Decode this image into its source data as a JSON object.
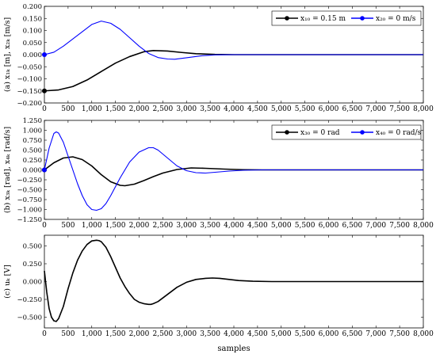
{
  "chart_data": [
    {
      "type": "line",
      "ylabel": "(a) x₁ₖ [m], x₂ₖ [m/s]",
      "xlabel": "",
      "xlim": [
        0,
        8000
      ],
      "ylim": [
        -0.2,
        0.2
      ],
      "xticks": [
        0,
        500,
        1000,
        1500,
        2000,
        2500,
        3000,
        3500,
        4000,
        4500,
        5000,
        5500,
        6000,
        6500,
        7000,
        7500,
        8000
      ],
      "xtick_labels": [
        "0",
        "500",
        "1,000",
        "1,500",
        "2,000",
        "2,500",
        "3,000",
        "3,500",
        "4,000",
        "4,500",
        "5,000",
        "5,500",
        "6,000",
        "6,500",
        "7,000",
        "7,500",
        "8,000"
      ],
      "yticks": [
        -0.2,
        -0.15,
        -0.1,
        -0.05,
        0,
        0.05,
        0.1,
        0.15,
        0.2
      ],
      "ytick_labels": [
        "−0.200",
        "−0.150",
        "−0.100",
        "−0.050",
        "0.000",
        "0.050",
        "0.100",
        "0.150",
        "0.200"
      ],
      "legend_position": "top-right",
      "series": [
        {
          "name": "x₁₀ = 0.15 m",
          "color": "#000000",
          "marker_start": true,
          "x": [
            0,
            300,
            600,
            900,
            1200,
            1500,
            1800,
            2100,
            2300,
            2600,
            2900,
            3200,
            3600,
            4000,
            4500,
            5000,
            8000
          ],
          "y": [
            -0.15,
            -0.146,
            -0.132,
            -0.105,
            -0.07,
            -0.035,
            -0.008,
            0.012,
            0.017,
            0.015,
            0.009,
            0.004,
            0.001,
            0.0,
            0.0,
            0.0,
            0.0
          ]
        },
        {
          "name": "x₂₀ = 0 m/s",
          "color": "#0000ff",
          "marker_start": true,
          "x": [
            0,
            200,
            400,
            600,
            800,
            1000,
            1200,
            1400,
            1600,
            1800,
            2000,
            2200,
            2400,
            2600,
            2750,
            3000,
            3300,
            3600,
            4000,
            4500,
            8000
          ],
          "y": [
            0.0,
            0.01,
            0.035,
            0.065,
            0.095,
            0.125,
            0.139,
            0.13,
            0.105,
            0.07,
            0.035,
            0.005,
            -0.012,
            -0.018,
            -0.019,
            -0.013,
            -0.005,
            -0.001,
            0.0,
            0.0,
            0.0
          ]
        }
      ]
    },
    {
      "type": "line",
      "ylabel": "(b) x₃ₖ [rad], x₄ₖ [rad/s]",
      "xlabel": "",
      "xlim": [
        0,
        8000
      ],
      "ylim": [
        -1.25,
        1.25
      ],
      "xticks": [
        0,
        500,
        1000,
        1500,
        2000,
        2500,
        3000,
        3500,
        4000,
        4500,
        5000,
        5500,
        6000,
        6500,
        7000,
        7500,
        8000
      ],
      "xtick_labels": [
        "0",
        "500",
        "1,000",
        "1,500",
        "2,000",
        "2,500",
        "3,000",
        "3,500",
        "4,000",
        "4,500",
        "5,000",
        "5,500",
        "6,000",
        "6,500",
        "7,000",
        "7,500",
        "8,000"
      ],
      "yticks": [
        -1.25,
        -1.0,
        -0.75,
        -0.5,
        -0.25,
        0,
        0.25,
        0.5,
        0.75,
        1.0,
        1.25
      ],
      "ytick_labels": [
        "−1.250",
        "−1.000",
        "−0.750",
        "−0.500",
        "−0.250",
        "0.000",
        "0.250",
        "0.500",
        "0.750",
        "1.000",
        "1.250"
      ],
      "legend_position": "top-right",
      "series": [
        {
          "name": "x₃₀ = 0 rad",
          "color": "#000000",
          "marker_start": true,
          "x": [
            0,
            200,
            400,
            600,
            800,
            1000,
            1200,
            1400,
            1600,
            1700,
            1900,
            2100,
            2300,
            2500,
            2800,
            3100,
            3400,
            3800,
            4200,
            4600,
            5000,
            8000
          ],
          "y": [
            0.0,
            0.18,
            0.3,
            0.33,
            0.26,
            0.1,
            -0.12,
            -0.3,
            -0.39,
            -0.4,
            -0.36,
            -0.27,
            -0.17,
            -0.08,
            0.01,
            0.05,
            0.04,
            0.02,
            0.005,
            0.0,
            0.0,
            0.0
          ]
        },
        {
          "name": "x₄₀ = 0 rad/s",
          "color": "#0000ff",
          "marker_start": true,
          "x": [
            0,
            100,
            200,
            250,
            300,
            400,
            500,
            600,
            700,
            800,
            900,
            1000,
            1100,
            1200,
            1300,
            1400,
            1600,
            1800,
            2000,
            2200,
            2300,
            2400,
            2600,
            2800,
            3000,
            3200,
            3400,
            3600,
            3900,
            4200,
            4600,
            5000,
            8000
          ],
          "y": [
            0.0,
            0.55,
            0.92,
            0.96,
            0.93,
            0.7,
            0.35,
            0.0,
            -0.35,
            -0.65,
            -0.88,
            -1.0,
            -1.02,
            -0.98,
            -0.85,
            -0.65,
            -0.2,
            0.2,
            0.45,
            0.56,
            0.56,
            0.5,
            0.3,
            0.1,
            -0.02,
            -0.07,
            -0.08,
            -0.06,
            -0.03,
            -0.01,
            0.0,
            0.0,
            0.0
          ]
        }
      ]
    },
    {
      "type": "line",
      "ylabel": "(c) uₖ [V]",
      "xlabel": "samples",
      "xlim": [
        0,
        8000
      ],
      "ylim": [
        -0.65,
        0.65
      ],
      "xticks": [
        0,
        500,
        1000,
        1500,
        2000,
        2500,
        3000,
        3500,
        4000,
        4500,
        5000,
        5500,
        6000,
        6500,
        7000,
        7500,
        8000
      ],
      "xtick_labels": [
        "0",
        "500",
        "1,000",
        "1,500",
        "2,000",
        "2,500",
        "3,000",
        "3,500",
        "4,000",
        "4,500",
        "5,000",
        "5,500",
        "6,000",
        "6,500",
        "7,000",
        "7,500",
        "8,000"
      ],
      "yticks": [
        -0.5,
        -0.25,
        0,
        0.25,
        0.5
      ],
      "ytick_labels": [
        "−0.500",
        "−0.250",
        "0.000",
        "0.250",
        "0.500"
      ],
      "series": [
        {
          "name": "",
          "color": "#000000",
          "marker_start": false,
          "x": [
            0,
            50,
            100,
            150,
            200,
            250,
            300,
            400,
            500,
            600,
            700,
            800,
            900,
            1000,
            1100,
            1150,
            1200,
            1300,
            1400,
            1500,
            1600,
            1700,
            1800,
            1900,
            2000,
            2100,
            2200,
            2250,
            2300,
            2400,
            2500,
            2600,
            2800,
            3000,
            3200,
            3400,
            3550,
            3700,
            3900,
            4100,
            4400,
            4800,
            5200,
            8000
          ],
          "y": [
            0.15,
            -0.15,
            -0.38,
            -0.5,
            -0.55,
            -0.56,
            -0.52,
            -0.35,
            -0.1,
            0.12,
            0.3,
            0.43,
            0.52,
            0.57,
            0.58,
            0.575,
            0.56,
            0.48,
            0.35,
            0.2,
            0.05,
            -0.07,
            -0.17,
            -0.25,
            -0.29,
            -0.31,
            -0.32,
            -0.32,
            -0.31,
            -0.28,
            -0.23,
            -0.18,
            -0.08,
            -0.01,
            0.03,
            0.045,
            0.05,
            0.045,
            0.03,
            0.015,
            0.005,
            0.0,
            0.0,
            0.0
          ]
        }
      ]
    }
  ]
}
